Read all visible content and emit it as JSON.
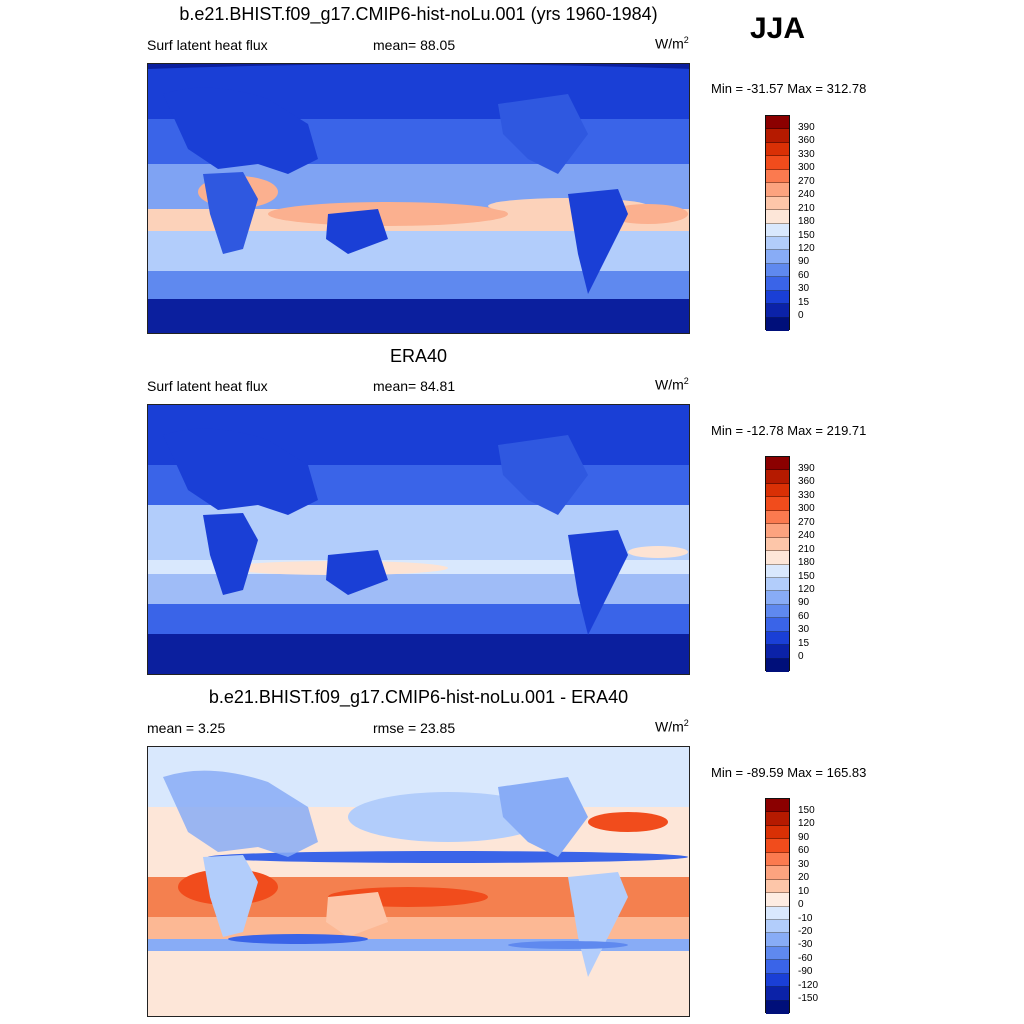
{
  "season": "JJA",
  "panels": [
    {
      "title": "b.e21.BHIST.f09_g17.CMIP6-hist-noLu.001 (yrs 1960-1984)",
      "left_label": "Surf latent heat flux",
      "mid_label": "mean=  88.05",
      "units": "W/m",
      "units_sup": "2",
      "minmax": "Min = -31.57 Max = 312.78",
      "colorbar": {
        "ticks": [
          "390",
          "360",
          "330",
          "300",
          "270",
          "240",
          "210",
          "180",
          "150",
          "120",
          "90",
          "60",
          "30",
          "15",
          "0"
        ],
        "colors": [
          "#8b0000",
          "#b51a00",
          "#d93005",
          "#f14c1c",
          "#fb7a4f",
          "#fca37f",
          "#fdc6a9",
          "#fde6d8",
          "#d9e8fd",
          "#b2cdfb",
          "#88acf6",
          "#5f89ef",
          "#3a64e8",
          "#1a3fd6",
          "#0b22a8",
          "#000f7a"
        ]
      }
    },
    {
      "title": "ERA40",
      "left_label": "Surf latent heat flux",
      "mid_label": "mean=  84.81",
      "units": "W/m",
      "units_sup": "2",
      "minmax": "Min = -12.78 Max = 219.71",
      "colorbar": {
        "ticks": [
          "390",
          "360",
          "330",
          "300",
          "270",
          "240",
          "210",
          "180",
          "150",
          "120",
          "90",
          "60",
          "30",
          "15",
          "0"
        ],
        "colors": [
          "#8b0000",
          "#b51a00",
          "#d93005",
          "#f14c1c",
          "#fb7a4f",
          "#fca37f",
          "#fdc6a9",
          "#fde6d8",
          "#d9e8fd",
          "#b2cdfb",
          "#88acf6",
          "#5f89ef",
          "#3a64e8",
          "#1a3fd6",
          "#0b22a8",
          "#000f7a"
        ]
      }
    },
    {
      "title": "b.e21.BHIST.f09_g17.CMIP6-hist-noLu.001 - ERA40",
      "left_label": "mean =   3.25",
      "mid_label": "rmse =  23.85",
      "units": "W/m",
      "units_sup": "2",
      "minmax": "Min = -89.59 Max = 165.83",
      "colorbar": {
        "ticks": [
          "150",
          "120",
          "90",
          "60",
          "30",
          "20",
          "10",
          "0",
          "-10",
          "-20",
          "-30",
          "-60",
          "-90",
          "-120",
          "-150"
        ],
        "colors": [
          "#8b0000",
          "#b51a00",
          "#d93005",
          "#f14c1c",
          "#fb7a4f",
          "#fca37f",
          "#fdc6a9",
          "#fdece2",
          "#d9e8fd",
          "#b2cdfb",
          "#88acf6",
          "#5f89ef",
          "#3a64e8",
          "#1a3fd6",
          "#0b22a8",
          "#000f7a"
        ]
      }
    }
  ],
  "map_colors": {
    "deep_blue": "#0b1f9e",
    "mid_blue": "#2f58e0",
    "light_blue": "#7fa3f3",
    "pale_blue": "#c4d8fb",
    "pale_pink": "#fde3d3",
    "salmon": "#fbb08f",
    "orange": "#f4622a",
    "land_dark": "#1a3fd6"
  }
}
